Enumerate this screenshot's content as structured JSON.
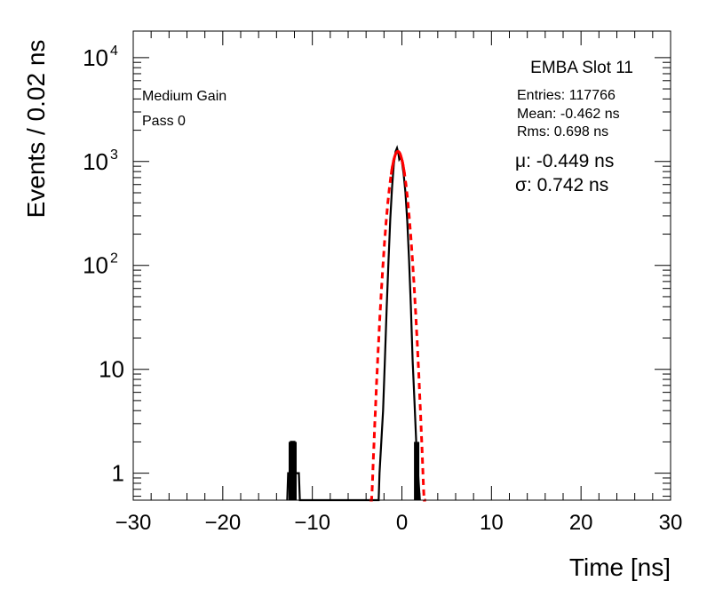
{
  "chart_data": {
    "type": "histogram",
    "xlabel": "Time [ns]",
    "ylabel": "Events / 0.02 ns",
    "xlim": [
      -30,
      30
    ],
    "ylim": [
      0.55,
      18000
    ],
    "yscale": "log",
    "x_ticks": [
      -30,
      -20,
      -10,
      0,
      10,
      20,
      30
    ],
    "x_tick_labels": [
      "−30",
      "−20",
      "−10",
      "0",
      "10",
      "20",
      "30"
    ],
    "y_ticks": [
      {
        "value": 1,
        "label": "1",
        "sup": ""
      },
      {
        "value": 10,
        "label": "10",
        "sup": ""
      },
      {
        "value": 100,
        "label": "10",
        "sup": "2"
      },
      {
        "value": 1000,
        "label": "10",
        "sup": "3"
      },
      {
        "value": 10000,
        "label": "10",
        "sup": "4"
      }
    ],
    "annotations": {
      "title": "EMBA Slot 11",
      "gain": "Medium Gain",
      "pass": "Pass 0",
      "entries": "Entries: 117766",
      "mean": "Mean: -0.462 ns",
      "rms": "Rms: 0.698 ns",
      "mu": "μ: -0.449 ns",
      "sigma": "σ: 0.742 ns"
    },
    "histogram": {
      "color": "#000000",
      "points": [
        [
          -12.8,
          0.55
        ],
        [
          -12.7,
          1
        ],
        [
          -12.5,
          1
        ],
        [
          -12.4,
          2
        ],
        [
          -12.0,
          2
        ],
        [
          -11.9,
          1
        ],
        [
          -11.5,
          1
        ],
        [
          -11.4,
          0.55
        ],
        [
          -2.6,
          0.55
        ],
        [
          -2.5,
          1
        ],
        [
          -2.3,
          2
        ],
        [
          -2.1,
          4
        ],
        [
          -1.9,
          12
        ],
        [
          -1.7,
          40
        ],
        [
          -1.5,
          110
        ],
        [
          -1.3,
          280
        ],
        [
          -1.1,
          560
        ],
        [
          -0.9,
          950
        ],
        [
          -0.7,
          1250
        ],
        [
          -0.55,
          1350
        ],
        [
          -0.4,
          1200
        ],
        [
          -0.3,
          1050
        ],
        [
          -0.15,
          1100
        ],
        [
          0.0,
          1000
        ],
        [
          0.2,
          750
        ],
        [
          0.4,
          500
        ],
        [
          0.6,
          260
        ],
        [
          0.8,
          110
        ],
        [
          1.0,
          40
        ],
        [
          1.2,
          12
        ],
        [
          1.4,
          5
        ],
        [
          1.6,
          2
        ],
        [
          1.8,
          1
        ],
        [
          2.0,
          0.55
        ]
      ],
      "spikes": [
        [
          -12.35,
          2
        ],
        [
          -12.05,
          2
        ],
        [
          1.65,
          2
        ]
      ]
    },
    "fit": {
      "type": "gaussian",
      "color": "#ff0000",
      "mean": -0.449,
      "sigma": 0.742,
      "amplitude": 1250,
      "solid_range": [
        -1.2,
        0.3
      ],
      "dashed_range": [
        -3.6,
        2.7
      ]
    }
  }
}
